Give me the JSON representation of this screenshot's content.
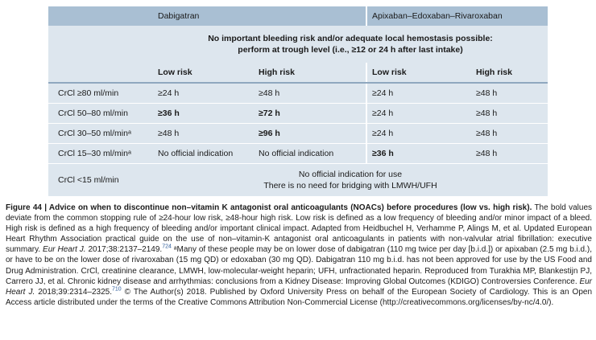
{
  "table": {
    "header": {
      "col_dabigatran": "Dabigatran",
      "col_xabans": "Apixaban–Edoxaban–Rivaroxaban"
    },
    "note_line1": "No important bleeding risk and/or adequate local hemostasis possible:",
    "note_line2": "perform at trough level (i.e., ≥12 or 24 h after last intake)",
    "risk_labels": [
      "Low risk",
      "High risk",
      "Low risk",
      "High risk"
    ],
    "rows": [
      {
        "label": "CrCl ≥80 ml/min",
        "cells": [
          "≥24 h",
          "≥48 h",
          "≥24 h",
          "≥48 h"
        ]
      },
      {
        "label": "CrCl 50–80 ml/min",
        "cells": [
          "≥36 h",
          "≥72 h",
          "≥24 h",
          "≥48 h"
        ]
      },
      {
        "label": "CrCl 30–50 ml/minᵃ",
        "cells": [
          "≥48 h",
          "≥96 h",
          "≥24 h",
          "≥48 h"
        ]
      },
      {
        "label": "CrCl 15–30 ml/minᵃ",
        "cells": [
          "No official indication",
          "No official indication",
          "≥36 h",
          "≥48 h"
        ]
      }
    ],
    "last_row": {
      "label": "CrCl <15 ml/min",
      "line1": "No official indication for use",
      "line2": "There is no need for bridging with LMWH/UFH"
    }
  },
  "caption": {
    "title": "Figure 44 | Advice on when to discontinue non–vitamin K antagonist oral anticoagulants (NOACs) before procedures (low vs. high risk).",
    "p1": " The bold values deviate from the common stopping rule of ≥24-hour low risk, ≥48-hour high risk. Low risk is defined as a low frequency of bleeding and/or minor impact of a bleed. High risk is defined as a high frequency of bleeding and/or important clinical impact. Adapted from Heidbuchel H, Verhamme P, Alings M, et al. Updated European Heart Rhythm Association practical guide on the use of non–vitamin-K antagonist oral anticoagulants in patients with non-valvular atrial fibrillation: executive summary. ",
    "journal1": "Eur Heart J.",
    "cite1": " 2017;38:2137–2149.",
    "ref1": "724",
    "p2": " ᵃMany of these people may be on lower dose of dabigatran (110 mg twice per day [b.i.d.]) or apixaban (2.5 mg b.i.d.), or have to be on the lower dose of rivaroxaban (15 mg QD) or edoxaban (30 mg QD). Dabigatran 110 mg b.i.d. has not been approved for use by the US Food and Drug Administration. CrCl, creatinine clearance, LMWH, low-molecular-weight heparin; UFH, unfractionated heparin. Reproduced from Turakhia MP, Blankestijn PJ, Carrero JJ, et al. Chronic kidney disease and arrhythmias: conclusions from a Kidney Disease: Improving Global Outcomes (KDIGO) Controversies Conference. ",
    "journal2": "Eur Heart J.",
    "cite2": " 2018;39:2314–2325.",
    "ref2": "710",
    "p3": " © The Author(s) 2018. Published by Oxford University Press on behalf of the European Society of Cardiology. This is an Open Access article distributed under the terms of the Creative Commons Attribution Non-Commercial License (",
    "link": "http://creativecommons.org/licenses/by-nc/4.0/",
    "p4": ")."
  }
}
